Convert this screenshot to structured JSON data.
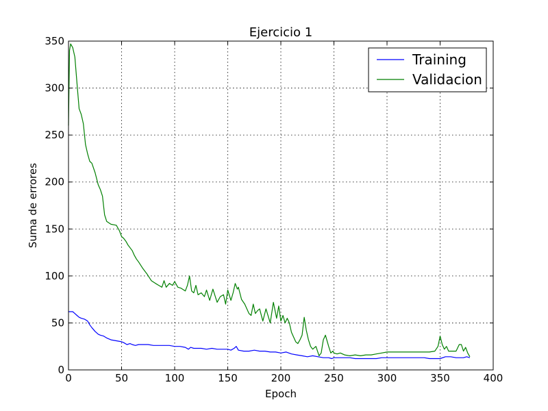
{
  "chart_data": {
    "type": "line",
    "title": "Ejercicio 1",
    "xlabel": "Epoch",
    "ylabel": "Suma de errores",
    "xlim": [
      0,
      400
    ],
    "ylim": [
      0,
      350
    ],
    "xticks": [
      0,
      50,
      100,
      150,
      200,
      250,
      300,
      350,
      400
    ],
    "yticks": [
      0,
      50,
      100,
      150,
      200,
      250,
      300,
      350
    ],
    "grid": true,
    "legend_position": "top-right",
    "series": [
      {
        "name": "Training",
        "color": "#0000ff",
        "x": [
          0,
          2,
          4,
          6,
          8,
          10,
          12,
          15,
          18,
          20,
          22,
          25,
          28,
          30,
          33,
          36,
          40,
          45,
          50,
          52,
          55,
          58,
          60,
          63,
          66,
          70,
          75,
          80,
          85,
          90,
          95,
          100,
          105,
          110,
          113,
          115,
          118,
          120,
          125,
          130,
          135,
          140,
          145,
          150,
          153,
          156,
          158,
          160,
          165,
          170,
          175,
          180,
          185,
          190,
          195,
          200,
          205,
          210,
          215,
          220,
          225,
          230,
          235,
          240,
          245,
          248,
          250,
          255,
          260,
          265,
          270,
          275,
          280,
          285,
          290,
          295,
          300,
          305,
          310,
          315,
          320,
          325,
          330,
          335,
          340,
          345,
          350,
          355,
          360,
          365,
          370,
          372,
          375,
          378
        ],
        "y": [
          62,
          62,
          62,
          60,
          58,
          56,
          55,
          54,
          52,
          48,
          45,
          41,
          38,
          37,
          36,
          34,
          32,
          31,
          30,
          29,
          27,
          28,
          27,
          26,
          27,
          27,
          27,
          26,
          26,
          26,
          26,
          25,
          25,
          24,
          22,
          24,
          23,
          23,
          23,
          22,
          23,
          22,
          22,
          22,
          21,
          23,
          25,
          21,
          20,
          20,
          21,
          20,
          20,
          19,
          19,
          18,
          19,
          17,
          16,
          15,
          14,
          15,
          14,
          13,
          13,
          12,
          13,
          13,
          13,
          13,
          12,
          12,
          12,
          12,
          12,
          13,
          13,
          13,
          13,
          13,
          13,
          13,
          13,
          13,
          12,
          12,
          12,
          14,
          14,
          13,
          13,
          13,
          14,
          13
        ]
      },
      {
        "name": "Validacion",
        "color": "#007f00",
        "x": [
          0,
          1,
          2,
          4,
          6,
          8,
          10,
          12,
          14,
          16,
          18,
          20,
          22,
          25,
          28,
          30,
          32,
          34,
          36,
          40,
          45,
          48,
          50,
          52,
          54,
          56,
          58,
          60,
          62,
          64,
          66,
          70,
          74,
          78,
          82,
          85,
          88,
          90,
          92,
          95,
          98,
          100,
          103,
          106,
          110,
          112,
          114,
          116,
          118,
          120,
          122,
          125,
          128,
          130,
          133,
          136,
          140,
          143,
          146,
          148,
          150,
          153,
          155,
          157,
          159,
          160,
          163,
          166,
          170,
          172,
          174,
          176,
          178,
          180,
          183,
          186,
          190,
          193,
          196,
          198,
          200,
          202,
          204,
          206,
          208,
          210,
          212,
          214,
          216,
          218,
          220,
          222,
          224,
          226,
          228,
          230,
          233,
          236,
          238,
          240,
          242,
          245,
          247,
          249,
          250,
          253,
          256,
          260,
          265,
          270,
          275,
          280,
          285,
          290,
          295,
          300,
          310,
          320,
          330,
          340,
          345,
          348,
          350,
          352,
          354,
          356,
          358,
          360,
          365,
          368,
          370,
          372,
          374,
          376,
          378
        ],
        "y": [
          260,
          340,
          347,
          343,
          333,
          305,
          278,
          272,
          262,
          240,
          230,
          222,
          220,
          210,
          197,
          192,
          185,
          165,
          158,
          155,
          154,
          148,
          142,
          140,
          137,
          133,
          130,
          127,
          122,
          118,
          115,
          108,
          102,
          95,
          92,
          90,
          88,
          95,
          88,
          92,
          90,
          94,
          88,
          87,
          84,
          90,
          100,
          84,
          82,
          90,
          80,
          82,
          78,
          85,
          74,
          86,
          72,
          78,
          80,
          70,
          85,
          74,
          82,
          92,
          86,
          88,
          75,
          70,
          60,
          58,
          70,
          60,
          63,
          65,
          52,
          65,
          50,
          72,
          55,
          68,
          52,
          58,
          50,
          55,
          50,
          40,
          35,
          30,
          28,
          32,
          37,
          56,
          42,
          32,
          25,
          22,
          25,
          15,
          18,
          32,
          37,
          25,
          18,
          20,
          18,
          17,
          18,
          16,
          15,
          16,
          15,
          16,
          16,
          17,
          18,
          19,
          19,
          19,
          19,
          19,
          20,
          25,
          36,
          27,
          22,
          25,
          20,
          20,
          20,
          27,
          27,
          20,
          24,
          18,
          14
        ]
      }
    ]
  }
}
